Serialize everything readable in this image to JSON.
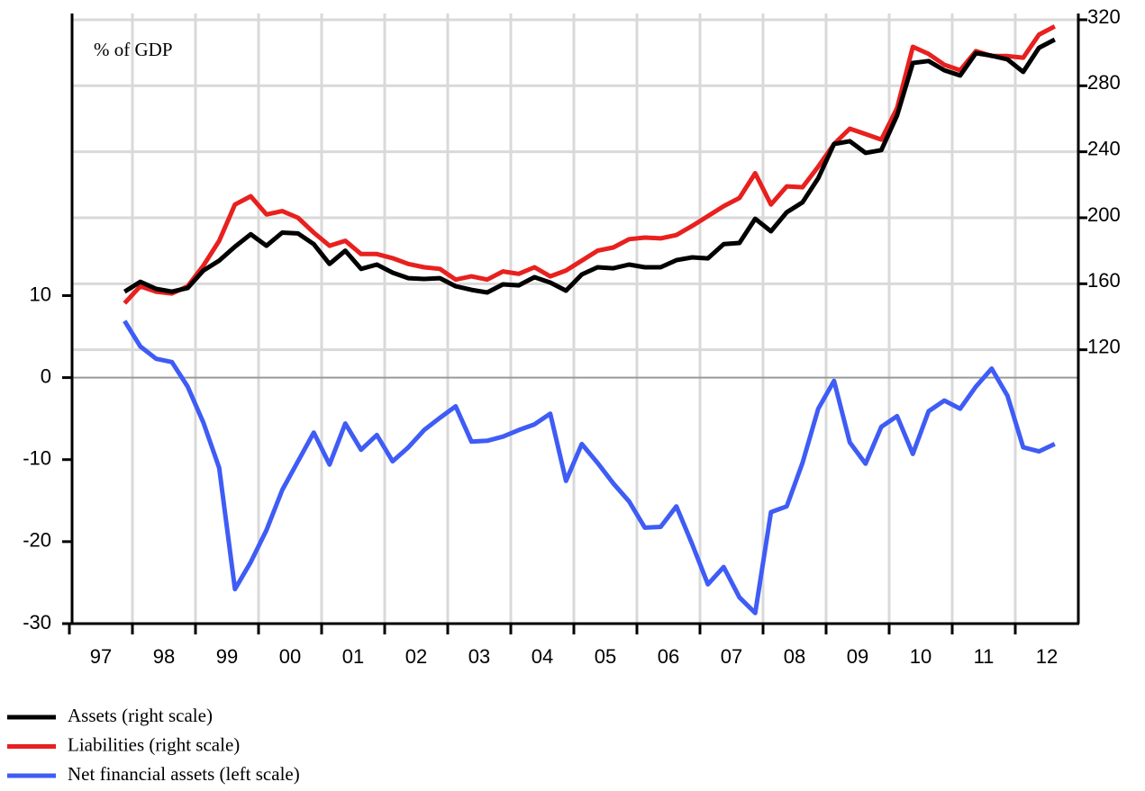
{
  "chart_data": {
    "type": "line",
    "annotation": "% of GDP",
    "x": [
      1997.875,
      1998.125,
      1998.375,
      1998.625,
      1998.875,
      1999.125,
      1999.375,
      1999.625,
      1999.875,
      2000.125,
      2000.375,
      2000.625,
      2000.875,
      2001.125,
      2001.375,
      2001.625,
      2001.875,
      2002.125,
      2002.375,
      2002.625,
      2002.875,
      2003.125,
      2003.375,
      2003.625,
      2003.875,
      2004.125,
      2004.375,
      2004.625,
      2004.875,
      2005.125,
      2005.375,
      2005.625,
      2005.875,
      2006.125,
      2006.375,
      2006.625,
      2006.875,
      2007.125,
      2007.375,
      2007.625,
      2007.875,
      2008.125,
      2008.375,
      2008.625,
      2008.875,
      2009.125,
      2009.375,
      2009.625,
      2009.875,
      2010.125,
      2010.375,
      2010.625,
      2010.875,
      2011.125,
      2011.375,
      2011.625,
      2011.875,
      2012.125,
      2012.375,
      2012.625
    ],
    "xlim": [
      1997,
      2013
    ],
    "xticks": [
      {
        "value": 1997,
        "label": "97"
      },
      {
        "value": 1998,
        "label": "98"
      },
      {
        "value": 1999,
        "label": "99"
      },
      {
        "value": 2000,
        "label": "00"
      },
      {
        "value": 2001,
        "label": "01"
      },
      {
        "value": 2002,
        "label": "02"
      },
      {
        "value": 2003,
        "label": "03"
      },
      {
        "value": 2004,
        "label": "04"
      },
      {
        "value": 2005,
        "label": "05"
      },
      {
        "value": 2006,
        "label": "06"
      },
      {
        "value": 2007,
        "label": "07"
      },
      {
        "value": 2008,
        "label": "08"
      },
      {
        "value": 2009,
        "label": "09"
      },
      {
        "value": 2010,
        "label": "10"
      },
      {
        "value": 2011,
        "label": "11"
      },
      {
        "value": 2012,
        "label": "12"
      }
    ],
    "ylim": [
      -30,
      44.4
    ],
    "yticks": [
      -30,
      -20,
      -10,
      0,
      10
    ],
    "y2lim": [
      -46,
      323.8
    ],
    "y2ticks": [
      120,
      160,
      200,
      240,
      280,
      320
    ],
    "grid": true,
    "series": [
      {
        "name": "Assets (right scale)",
        "color": "#000000",
        "axis": "y2",
        "values": [
          155.2,
          161.2,
          156.9,
          155.2,
          157.4,
          168,
          174,
          182.5,
          190,
          183,
          191,
          190.5,
          184,
          172,
          180,
          169,
          171.6,
          166.7,
          163.4,
          162.9,
          163.4,
          158.5,
          156.3,
          154.7,
          159.6,
          159,
          164,
          160.7,
          155.8,
          165.6,
          170,
          169.4,
          171.6,
          170,
          170,
          174.3,
          176,
          175.4,
          184,
          184.7,
          199.4,
          191.8,
          203.3,
          209.3,
          224,
          244.7,
          246.4,
          239.3,
          241,
          262,
          293.8,
          295,
          289.4,
          286.2,
          299.8,
          298.2,
          296,
          288.4,
          303,
          308
        ]
      },
      {
        "name": "Liabilities (right scale)",
        "color": "#e8201e",
        "axis": "y2",
        "values": [
          148.2,
          158.5,
          155.2,
          154.1,
          158.5,
          171,
          186,
          208,
          213,
          202,
          204,
          200,
          191,
          183,
          186,
          178,
          178,
          175.5,
          172,
          170,
          169,
          162.5,
          164.5,
          162.5,
          167.5,
          166,
          170,
          164.5,
          168,
          174,
          180,
          182,
          187,
          188,
          187.5,
          189.5,
          195,
          201,
          207,
          212,
          227,
          208,
          219,
          218.5,
          231,
          244.7,
          254,
          250.7,
          247.4,
          266.5,
          303.6,
          299.3,
          292.7,
          289.4,
          301,
          298,
          298,
          297,
          311,
          316
        ]
      },
      {
        "name": "Net financial assets (left scale)",
        "color": "#3f5cf5",
        "axis": "y",
        "values": [
          6.9,
          3.8,
          2.3,
          1.9,
          -1.1,
          -5.5,
          -11,
          -25.8,
          -22.5,
          -18.6,
          -13.7,
          -10.2,
          -6.7,
          -10.6,
          -5.6,
          -8.8,
          -7,
          -10.2,
          -8.5,
          -6.4,
          -4.9,
          -3.5,
          -7.8,
          -7.7,
          -7.2,
          -6.4,
          -5.7,
          -4.4,
          -12.6,
          -8.1,
          -10.4,
          -12.9,
          -15.1,
          -18.3,
          -18.2,
          -15.7,
          -20.3,
          -25.2,
          -23.1,
          -26.8,
          -28.7,
          -16.4,
          -15.7,
          -10.4,
          -3.8,
          -0.4,
          -7.9,
          -10.5,
          -6,
          -4.7,
          -9.3,
          -4.1,
          -2.8,
          -3.8,
          -1.1,
          1.1,
          -2.2,
          -8.5,
          -9,
          -8.1
        ]
      }
    ]
  }
}
